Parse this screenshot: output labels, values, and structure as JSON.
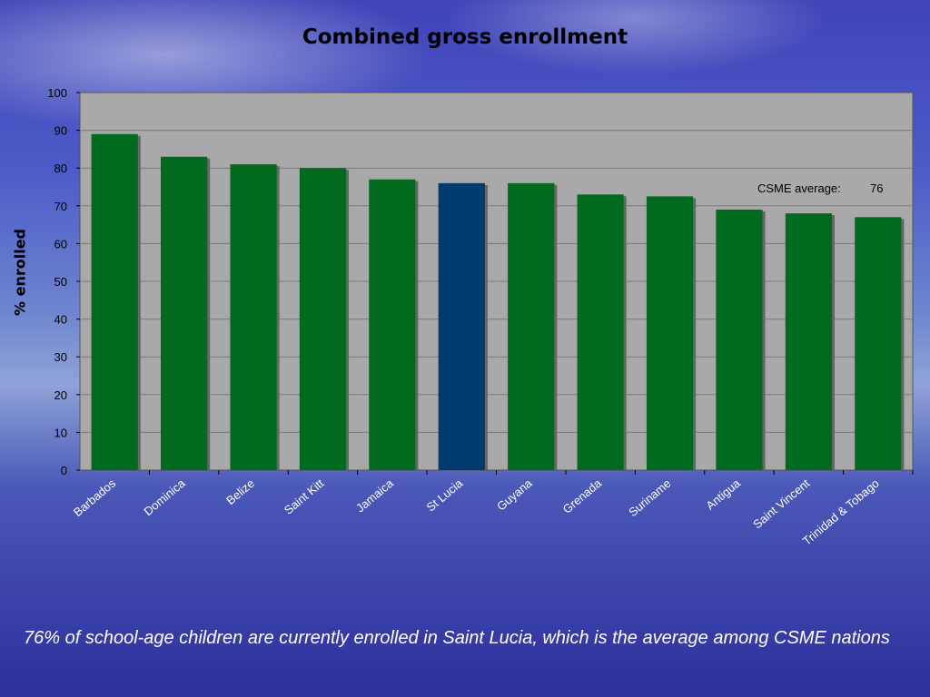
{
  "chart_data": {
    "type": "bar",
    "title": "Combined gross enrollment",
    "xlabel": "",
    "ylabel": "% enrolled",
    "ylim": [
      0,
      100
    ],
    "yticks": [
      0,
      10,
      20,
      30,
      40,
      50,
      60,
      70,
      80,
      90,
      100
    ],
    "categories": [
      "Barbados",
      "Dominica",
      "Belize",
      "Saint Kitt",
      "Jamaica",
      "St Lucia",
      "Guyana",
      "Grenada",
      "Suriname",
      "Antigua",
      "Saint Vincent",
      "Trinidad & Tobago"
    ],
    "values": [
      89,
      83,
      81,
      80,
      77,
      76,
      76,
      73,
      72.5,
      69,
      68,
      67
    ],
    "highlight_category": "St Lucia",
    "colors": {
      "bar": "#006b1e",
      "highlight": "#003a6e",
      "plot_bg": "#a9a9a9"
    },
    "grid": true,
    "annotation": {
      "label": "CSME average:",
      "value": "76"
    }
  },
  "caption": "76% of school-age children are currently enrolled in Saint Lucia, which is the average among CSME nations"
}
